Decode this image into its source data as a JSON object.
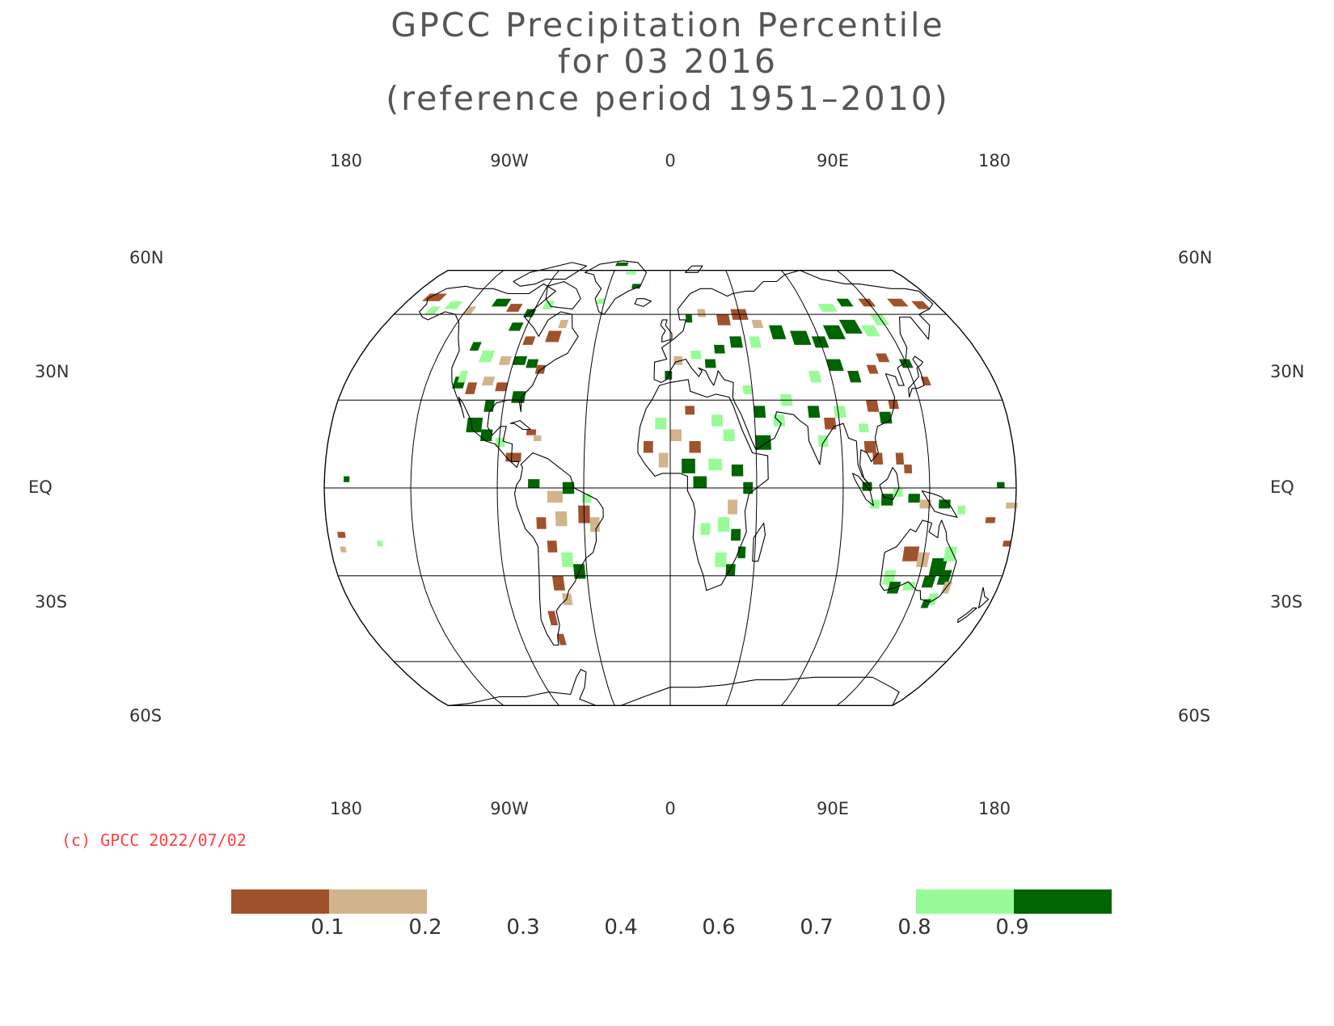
{
  "title": {
    "line1": "GPCC Precipitation Percentile",
    "line2": "for 03 2016",
    "line3": "(reference period 1951–2010)"
  },
  "map": {
    "projection": "Robinson",
    "central_meridian": 0,
    "grid_color": "#000000",
    "land_outline_color": "#000000",
    "top_lon_labels": [
      "180",
      "90W",
      "0",
      "90E",
      "180"
    ],
    "bottom_lon_labels": [
      "180",
      "90W",
      "0",
      "90E",
      "180"
    ],
    "left_lat_labels": [
      "60N",
      "30N",
      "EQ",
      "30S",
      "60S"
    ],
    "right_lat_labels": [
      "60N",
      "30N",
      "EQ",
      "30S",
      "60S"
    ]
  },
  "copyright": {
    "text": "(c) GPCC 2022/07/02",
    "color": "#ff4040"
  },
  "legend": {
    "labels": [
      "0.1",
      "0.2",
      "0.3",
      "0.4",
      "0.6",
      "0.7",
      "0.8",
      "0.9"
    ],
    "boxes": [
      {
        "range": "< 0.1",
        "color": "#a0522d"
      },
      {
        "range": "0.1 - 0.2",
        "color": "#d2b48c"
      },
      {
        "range": "0.2 - 0.3",
        "color": "#ffffff"
      },
      {
        "range": "0.3 - 0.4",
        "color": "#ffffff"
      },
      {
        "range": "0.4 - 0.6",
        "color": "#ffffff"
      },
      {
        "range": "0.6 - 0.7",
        "color": "#ffffff"
      },
      {
        "range": "0.7 - 0.8",
        "color": "#ffffff"
      },
      {
        "range": "0.8 - 0.9",
        "color": "#98fb98"
      },
      {
        "range": "> 0.9",
        "color": "#006400"
      }
    ]
  }
}
